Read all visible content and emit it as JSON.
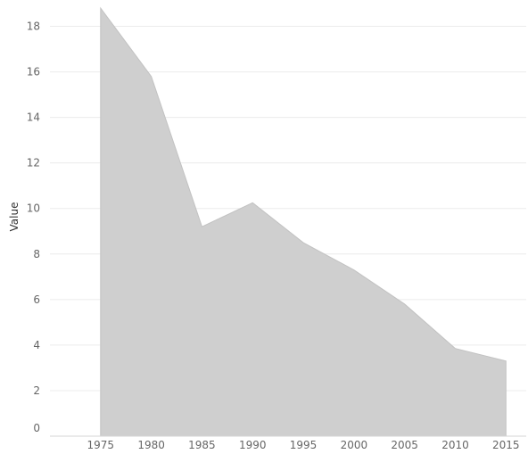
{
  "chart_data": {
    "type": "area",
    "x": [
      1975,
      1980,
      1985,
      1990,
      1995,
      2000,
      2005,
      2010,
      2015
    ],
    "values": [
      18.8,
      15.8,
      9.2,
      10.25,
      8.5,
      7.3,
      5.8,
      3.85,
      3.3
    ],
    "xlabel": "",
    "ylabel": "Value",
    "ylim": [
      0,
      19
    ],
    "xlim": [
      1970,
      2017
    ],
    "y_ticks": [
      0,
      2,
      4,
      6,
      8,
      10,
      12,
      14,
      16,
      18
    ],
    "x_ticks": [
      1975,
      1980,
      1985,
      1990,
      1995,
      2000,
      2005,
      2010,
      2015
    ],
    "grid": true,
    "legend": "none",
    "area_color": "#cfcfcf"
  }
}
